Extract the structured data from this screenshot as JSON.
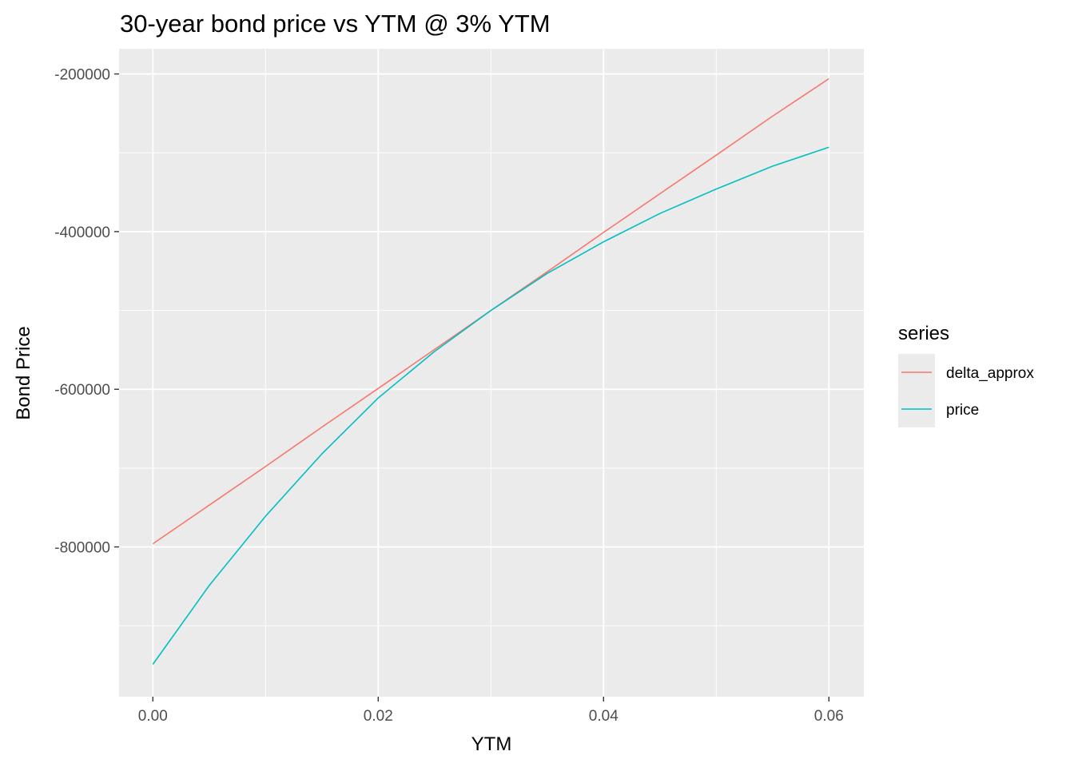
{
  "chart_data": {
    "type": "line",
    "title": "30-year bond price vs YTM @ 3% YTM",
    "xlabel": "YTM",
    "ylabel": "Bond Price",
    "xlim": [
      -0.003,
      0.0631
    ],
    "ylim": [
      -990000,
      -168000
    ],
    "x_ticks": [
      0.0,
      0.02,
      0.04,
      0.06
    ],
    "x_tick_labels": [
      "0.00",
      "0.02",
      "0.04",
      "0.06"
    ],
    "y_ticks": [
      -800000,
      -600000,
      -400000,
      -200000
    ],
    "y_tick_labels": [
      "-800000",
      "-600000",
      "-400000",
      "-200000"
    ],
    "x_minor_ticks": [
      0.01,
      0.03,
      0.05
    ],
    "y_minor_ticks": [
      -900000,
      -700000,
      -500000,
      -300000
    ],
    "grid": true,
    "background": "#ebebeb",
    "legend": {
      "title": "series",
      "position": "right",
      "entries": [
        "delta_approx",
        "price"
      ]
    },
    "x": [
      0.0,
      0.005,
      0.01,
      0.015,
      0.02,
      0.025,
      0.03,
      0.035,
      0.04,
      0.045,
      0.05,
      0.055,
      0.06
    ],
    "series": [
      {
        "name": "delta_approx",
        "color": "#F8766D",
        "values": [
          -796000,
          -747000,
          -698000,
          -648000,
          -599000,
          -549500,
          -500000,
          -451000,
          -401000,
          -352000,
          -303000,
          -253500,
          -206000
        ]
      },
      {
        "name": "price",
        "color": "#00BFC4",
        "values": [
          -949000,
          -849000,
          -761000,
          -682000,
          -611000,
          -552000,
          -500000,
          -453000,
          -413000,
          -377000,
          -346000,
          -317000,
          -293000
        ]
      }
    ]
  }
}
